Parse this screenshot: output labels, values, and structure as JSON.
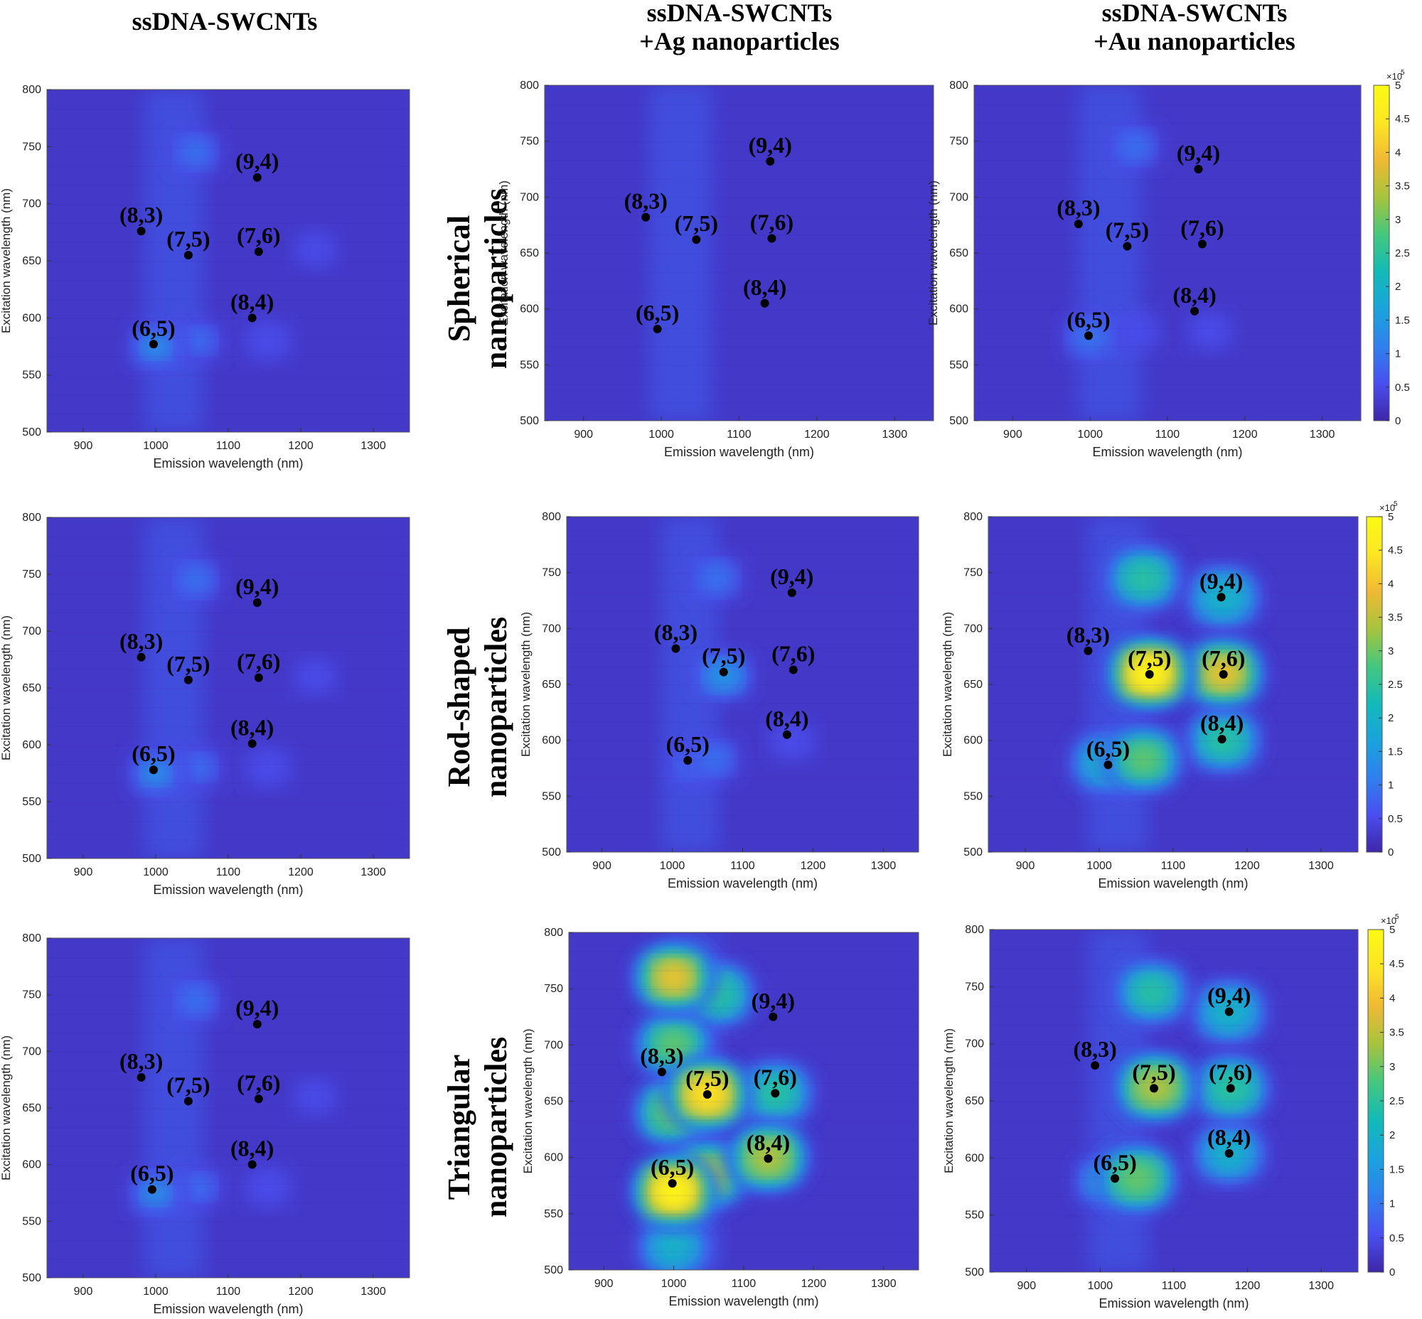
{
  "columns": [
    {
      "lines": [
        "ssDNA-SWCNTs"
      ]
    },
    {
      "lines": [
        "ssDNA-SWCNTs",
        "+Ag nanoparticles"
      ]
    },
    {
      "lines": [
        "ssDNA-SWCNTs",
        "+Au nanoparticles"
      ]
    }
  ],
  "rows": [
    {
      "lines": [
        "Spherical",
        "nanoparticles"
      ]
    },
    {
      "lines": [
        "Rod-shaped",
        "nanoparticles"
      ]
    },
    {
      "lines": [
        "Triangular",
        "nanoparticles"
      ]
    }
  ],
  "colors": {
    "colormap": [
      "#3e26a8",
      "#4a4ff0",
      "#2f80ee",
      "#1aa3dc",
      "#13bab8",
      "#45c77e",
      "#a7c43d",
      "#f0b934",
      "#fde624",
      "#fbfa14"
    ],
    "marker": "#000000",
    "axis": "#333333"
  },
  "chart_data": [
    {
      "type": "heatmap",
      "panel": "ssDNA-SWCNTs / Spherical nanoparticles",
      "xlabel": "Emission wavelength (nm)",
      "ylabel": "Excitation wavelength (nm)",
      "xlim": [
        850,
        1350
      ],
      "ylim": [
        500,
        800
      ],
      "xticks": [
        900,
        1000,
        1100,
        1200,
        1300
      ],
      "yticks": [
        500,
        550,
        600,
        650,
        700,
        750,
        800
      ],
      "colorbar": null,
      "chiralities": [
        {
          "label": "(9,4)",
          "x": 1140,
          "y": 723
        },
        {
          "label": "(8,3)",
          "x": 980,
          "y": 676
        },
        {
          "label": "(7,5)",
          "x": 1045,
          "y": 655
        },
        {
          "label": "(7,6)",
          "x": 1142,
          "y": 658
        },
        {
          "label": "(8,4)",
          "x": 1133,
          "y": 600
        },
        {
          "label": "(6,5)",
          "x": 997,
          "y": 577
        }
      ],
      "intensity_peaks": [
        {
          "x": 1000,
          "y": 575,
          "value": 1.5
        },
        {
          "x": 1055,
          "y": 745,
          "value": 1.2
        },
        {
          "x": 1060,
          "y": 580,
          "value": 1.0
        },
        {
          "x": 1155,
          "y": 580,
          "value": 0.9
        },
        {
          "x": 1220,
          "y": 660,
          "value": 0.7
        }
      ]
    },
    {
      "type": "heatmap",
      "panel": "ssDNA-SWCNTs+Ag nanoparticles / Spherical nanoparticles",
      "xlabel": "Emission wavelength (nm)",
      "ylabel": "Excitation wavelength (nm)",
      "xlim": [
        850,
        1350
      ],
      "ylim": [
        500,
        800
      ],
      "xticks": [
        900,
        1000,
        1100,
        1200,
        1300
      ],
      "yticks": [
        500,
        550,
        600,
        650,
        700,
        750,
        800
      ],
      "colorbar": null,
      "chiralities": [
        {
          "label": "(9,4)",
          "x": 1140,
          "y": 732
        },
        {
          "label": "(8,3)",
          "x": 980,
          "y": 682
        },
        {
          "label": "(7,5)",
          "x": 1045,
          "y": 662
        },
        {
          "label": "(7,6)",
          "x": 1142,
          "y": 663
        },
        {
          "label": "(8,4)",
          "x": 1133,
          "y": 605
        },
        {
          "label": "(6,5)",
          "x": 995,
          "y": 582
        }
      ],
      "intensity_peaks": [
        {
          "x": 1060,
          "y": 700,
          "value": 0.25
        }
      ]
    },
    {
      "type": "heatmap",
      "panel": "ssDNA-SWCNTs+Au nanoparticles / Spherical nanoparticles",
      "xlabel": "Emission wavelength (nm)",
      "ylabel": "Excitation wavelength (nm)",
      "xlim": [
        850,
        1350
      ],
      "ylim": [
        500,
        800
      ],
      "xticks": [
        900,
        1000,
        1100,
        1200,
        1300
      ],
      "yticks": [
        500,
        550,
        600,
        650,
        700,
        750,
        800
      ],
      "colorbar": {
        "min": 0,
        "max": 5,
        "ticks": [
          0,
          0.5,
          1,
          1.5,
          2,
          2.5,
          3,
          3.5,
          4,
          4.5,
          5
        ],
        "multiplier": "×10",
        "exponent": "5"
      },
      "chiralities": [
        {
          "label": "(9,4)",
          "x": 1140,
          "y": 725
        },
        {
          "label": "(8,3)",
          "x": 985,
          "y": 676
        },
        {
          "label": "(7,5)",
          "x": 1048,
          "y": 656
        },
        {
          "label": "(7,6)",
          "x": 1145,
          "y": 658
        },
        {
          "label": "(8,4)",
          "x": 1135,
          "y": 598
        },
        {
          "label": "(6,5)",
          "x": 998,
          "y": 576
        }
      ],
      "intensity_peaks": [
        {
          "x": 1000,
          "y": 575,
          "value": 1.4
        },
        {
          "x": 1058,
          "y": 745,
          "value": 1.2
        },
        {
          "x": 1060,
          "y": 580,
          "value": 0.9
        },
        {
          "x": 1155,
          "y": 580,
          "value": 0.8
        }
      ]
    },
    {
      "type": "heatmap",
      "panel": "ssDNA-SWCNTs / Rod-shaped nanoparticles",
      "xlabel": "Emission wavelength (nm)",
      "ylabel": "Excitation wavelength (nm)",
      "xlim": [
        850,
        1350
      ],
      "ylim": [
        500,
        800
      ],
      "xticks": [
        900,
        1000,
        1100,
        1200,
        1300
      ],
      "yticks": [
        500,
        550,
        600,
        650,
        700,
        750,
        800
      ],
      "colorbar": null,
      "chiralities": [
        {
          "label": "(9,4)",
          "x": 1140,
          "y": 725
        },
        {
          "label": "(8,3)",
          "x": 980,
          "y": 677
        },
        {
          "label": "(7,5)",
          "x": 1045,
          "y": 657
        },
        {
          "label": "(7,6)",
          "x": 1142,
          "y": 659
        },
        {
          "label": "(8,4)",
          "x": 1133,
          "y": 601
        },
        {
          "label": "(6,5)",
          "x": 997,
          "y": 578
        }
      ],
      "intensity_peaks": [
        {
          "x": 1000,
          "y": 575,
          "value": 1.5
        },
        {
          "x": 1055,
          "y": 745,
          "value": 1.2
        },
        {
          "x": 1060,
          "y": 580,
          "value": 1.0
        },
        {
          "x": 1155,
          "y": 580,
          "value": 0.9
        },
        {
          "x": 1220,
          "y": 660,
          "value": 0.7
        }
      ]
    },
    {
      "type": "heatmap",
      "panel": "ssDNA-SWCNTs+Ag nanoparticles / Rod-shaped nanoparticles",
      "xlabel": "Emission wavelength (nm)",
      "ylabel": "Excitation wavelength (nm)",
      "xlim": [
        850,
        1350
      ],
      "ylim": [
        500,
        800
      ],
      "xticks": [
        900,
        1000,
        1100,
        1200,
        1300
      ],
      "yticks": [
        500,
        550,
        600,
        650,
        700,
        750,
        800
      ],
      "colorbar": null,
      "chiralities": [
        {
          "label": "(9,4)",
          "x": 1170,
          "y": 732
        },
        {
          "label": "(8,3)",
          "x": 1005,
          "y": 682
        },
        {
          "label": "(7,5)",
          "x": 1073,
          "y": 661
        },
        {
          "label": "(7,6)",
          "x": 1172,
          "y": 663
        },
        {
          "label": "(8,4)",
          "x": 1163,
          "y": 605
        },
        {
          "label": "(6,5)",
          "x": 1022,
          "y": 582
        }
      ],
      "intensity_peaks": [
        {
          "x": 1073,
          "y": 658,
          "value": 1.9
        },
        {
          "x": 1063,
          "y": 745,
          "value": 1.3
        },
        {
          "x": 1060,
          "y": 583,
          "value": 1.2
        },
        {
          "x": 1170,
          "y": 600,
          "value": 0.9
        },
        {
          "x": 1028,
          "y": 577,
          "value": 1.0
        }
      ]
    },
    {
      "type": "heatmap",
      "panel": "ssDNA-SWCNTs+Au nanoparticles / Rod-shaped nanoparticles",
      "xlabel": "Emission wavelength (nm)",
      "ylabel": "Excitation wavelength (nm)",
      "xlim": [
        850,
        1350
      ],
      "ylim": [
        500,
        800
      ],
      "xticks": [
        900,
        1000,
        1100,
        1200,
        1300
      ],
      "yticks": [
        500,
        550,
        600,
        650,
        700,
        750,
        800
      ],
      "colorbar": {
        "min": 0,
        "max": 5,
        "ticks": [
          0,
          0.5,
          1,
          1.5,
          2,
          2.5,
          3,
          3.5,
          4,
          4.5,
          5
        ],
        "multiplier": "×10",
        "exponent": "5"
      },
      "chiralities": [
        {
          "label": "(9,4)",
          "x": 1165,
          "y": 728
        },
        {
          "label": "(8,3)",
          "x": 985,
          "y": 680
        },
        {
          "label": "(7,5)",
          "x": 1068,
          "y": 659
        },
        {
          "label": "(7,6)",
          "x": 1168,
          "y": 659
        },
        {
          "label": "(8,4)",
          "x": 1166,
          "y": 601
        },
        {
          "label": "(6,5)",
          "x": 1012,
          "y": 578
        }
      ],
      "intensity_peaks": [
        {
          "x": 1068,
          "y": 660,
          "value": 5.0
        },
        {
          "x": 1168,
          "y": 660,
          "value": 4.0
        },
        {
          "x": 1168,
          "y": 728,
          "value": 2.4
        },
        {
          "x": 1168,
          "y": 600,
          "value": 2.6
        },
        {
          "x": 1060,
          "y": 583,
          "value": 3.0
        },
        {
          "x": 1060,
          "y": 745,
          "value": 2.6
        },
        {
          "x": 1010,
          "y": 580,
          "value": 2.2
        }
      ]
    },
    {
      "type": "heatmap",
      "panel": "ssDNA-SWCNTs / Triangular nanoparticles",
      "xlabel": "Emission wavelength (nm)",
      "ylabel": "Excitation wavelength (nm)",
      "xlim": [
        850,
        1350
      ],
      "ylim": [
        500,
        800
      ],
      "xticks": [
        900,
        1000,
        1100,
        1200,
        1300
      ],
      "yticks": [
        500,
        550,
        600,
        650,
        700,
        750,
        800
      ],
      "colorbar": null,
      "chiralities": [
        {
          "label": "(9,4)",
          "x": 1140,
          "y": 724
        },
        {
          "label": "(8,3)",
          "x": 980,
          "y": 677
        },
        {
          "label": "(7,5)",
          "x": 1045,
          "y": 656
        },
        {
          "label": "(7,6)",
          "x": 1142,
          "y": 658
        },
        {
          "label": "(8,4)",
          "x": 1133,
          "y": 600
        },
        {
          "label": "(6,5)",
          "x": 995,
          "y": 578
        }
      ],
      "intensity_peaks": [
        {
          "x": 1000,
          "y": 575,
          "value": 1.5
        },
        {
          "x": 1055,
          "y": 745,
          "value": 1.2
        },
        {
          "x": 1060,
          "y": 580,
          "value": 1.0
        },
        {
          "x": 1155,
          "y": 580,
          "value": 0.9
        },
        {
          "x": 1220,
          "y": 660,
          "value": 0.7
        }
      ]
    },
    {
      "type": "heatmap",
      "panel": "ssDNA-SWCNTs+Ag nanoparticles / Triangular nanoparticles",
      "xlabel": "Emission wavelength (nm)",
      "ylabel": "Excitation wavelength (nm)",
      "xlim": [
        850,
        1350
      ],
      "ylim": [
        500,
        800
      ],
      "xticks": [
        900,
        1000,
        1100,
        1200,
        1300
      ],
      "yticks": [
        500,
        550,
        600,
        650,
        700,
        750,
        800
      ],
      "colorbar": null,
      "chiralities": [
        {
          "label": "(9,4)",
          "x": 1142,
          "y": 725
        },
        {
          "label": "(8,3)",
          "x": 983,
          "y": 676
        },
        {
          "label": "(7,5)",
          "x": 1048,
          "y": 656
        },
        {
          "label": "(7,6)",
          "x": 1145,
          "y": 657
        },
        {
          "label": "(8,4)",
          "x": 1135,
          "y": 599
        },
        {
          "label": "(6,5)",
          "x": 998,
          "y": 577
        }
      ],
      "intensity_peaks": [
        {
          "x": 1000,
          "y": 570,
          "value": 5.0
        },
        {
          "x": 1048,
          "y": 656,
          "value": 4.8
        },
        {
          "x": 1000,
          "y": 760,
          "value": 4.0
        },
        {
          "x": 1000,
          "y": 640,
          "value": 3.3
        },
        {
          "x": 1000,
          "y": 700,
          "value": 3.0
        },
        {
          "x": 1048,
          "y": 585,
          "value": 3.6
        },
        {
          "x": 1135,
          "y": 600,
          "value": 3.8
        },
        {
          "x": 1060,
          "y": 745,
          "value": 2.8
        },
        {
          "x": 1145,
          "y": 657,
          "value": 2.6
        },
        {
          "x": 1000,
          "y": 520,
          "value": 2.2
        }
      ]
    },
    {
      "type": "heatmap",
      "panel": "ssDNA-SWCNTs+Au nanoparticles / Triangular nanoparticles",
      "xlabel": "Emission wavelength (nm)",
      "ylabel": "Excitation wavelength (nm)",
      "xlim": [
        850,
        1350
      ],
      "ylim": [
        500,
        800
      ],
      "xticks": [
        900,
        1000,
        1100,
        1200,
        1300
      ],
      "yticks": [
        500,
        550,
        600,
        650,
        700,
        750,
        800
      ],
      "colorbar": {
        "min": 0,
        "max": 5,
        "ticks": [
          0,
          0.5,
          1,
          1.5,
          2,
          2.5,
          3,
          3.5,
          4,
          4.5,
          5
        ],
        "multiplier": "×10",
        "exponent": "5"
      },
      "chiralities": [
        {
          "label": "(9,4)",
          "x": 1175,
          "y": 728
        },
        {
          "label": "(8,3)",
          "x": 993,
          "y": 681
        },
        {
          "label": "(7,5)",
          "x": 1073,
          "y": 661
        },
        {
          "label": "(7,6)",
          "x": 1177,
          "y": 661
        },
        {
          "label": "(8,4)",
          "x": 1175,
          "y": 604
        },
        {
          "label": "(6,5)",
          "x": 1020,
          "y": 582
        }
      ],
      "intensity_peaks": [
        {
          "x": 1075,
          "y": 662,
          "value": 3.8
        },
        {
          "x": 1050,
          "y": 582,
          "value": 3.3
        },
        {
          "x": 1177,
          "y": 661,
          "value": 2.9
        },
        {
          "x": 1070,
          "y": 745,
          "value": 2.5
        },
        {
          "x": 1175,
          "y": 728,
          "value": 2.4
        },
        {
          "x": 1175,
          "y": 604,
          "value": 2.2
        },
        {
          "x": 1005,
          "y": 580,
          "value": 2.0
        }
      ]
    }
  ]
}
